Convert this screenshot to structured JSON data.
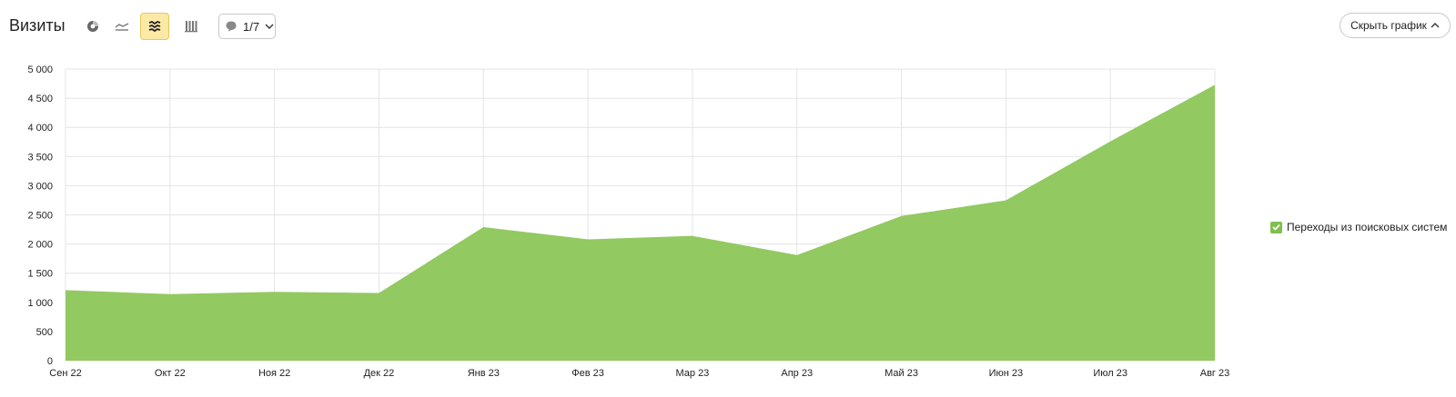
{
  "header": {
    "title": "Визиты",
    "annotations_label": "1/7",
    "hide_chart_label": "Скрыть график"
  },
  "toolbar": {
    "icons": [
      "pie-chart-icon",
      "line-chart-icon",
      "area-chart-icon",
      "bar-chart-icon"
    ],
    "active": "area-chart-icon"
  },
  "colors": {
    "series": "#92c961",
    "accent": "#fde9a6",
    "check": "#7fbf4d"
  },
  "chart_data": {
    "type": "area",
    "x": [
      "Сен 22",
      "Окт 22",
      "Ноя 22",
      "Дек 22",
      "Янв 23",
      "Фев 23",
      "Мар 23",
      "Апр 23",
      "Май 23",
      "Июн 23",
      "Июл 23",
      "Авг 23"
    ],
    "series": [
      {
        "name": "Переходы из поисковых систем",
        "values": [
          1210,
          1140,
          1180,
          1160,
          2290,
          2080,
          2140,
          1810,
          2480,
          2750,
          3760,
          4730
        ]
      }
    ],
    "yticks": [
      "0",
      "500",
      "1 000",
      "1 500",
      "2 000",
      "2 500",
      "3 000",
      "3 500",
      "4 000",
      "4 500",
      "5 000"
    ],
    "ylim": [
      0,
      5000
    ],
    "grid": true,
    "legend": "right"
  }
}
